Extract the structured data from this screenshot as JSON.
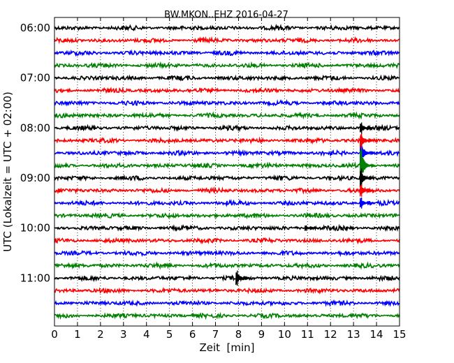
{
  "chart_data": {
    "type": "line",
    "title": "BW.MKON..EHZ 2016-04-27",
    "xlabel": "Zeit  [min]",
    "ylabel": "UTC (Lokalzeit = UTC + 02:00)",
    "xlim": [
      0,
      15
    ],
    "x_ticks": [
      "0",
      "1",
      "2",
      "3",
      "4",
      "5",
      "6",
      "7",
      "8",
      "9",
      "10",
      "11",
      "12",
      "13",
      "14",
      "15"
    ],
    "y_ticks": [
      "06:00",
      "07:00",
      "08:00",
      "09:00",
      "10:00",
      "11:00"
    ],
    "grid": "vertical dotted",
    "trace_interval_min": 15,
    "trace_colors": [
      "#000000",
      "#ff0000",
      "#0000ff",
      "#008000"
    ],
    "traces": [
      {
        "start": "06:00",
        "color": "#000000"
      },
      {
        "start": "06:15",
        "color": "#ff0000"
      },
      {
        "start": "06:30",
        "color": "#0000ff"
      },
      {
        "start": "06:45",
        "color": "#008000"
      },
      {
        "start": "07:00",
        "color": "#000000"
      },
      {
        "start": "07:15",
        "color": "#ff0000"
      },
      {
        "start": "07:30",
        "color": "#0000ff"
      },
      {
        "start": "07:45",
        "color": "#008000"
      },
      {
        "start": "08:00",
        "color": "#000000"
      },
      {
        "start": "08:15",
        "color": "#ff0000"
      },
      {
        "start": "08:30",
        "color": "#0000ff"
      },
      {
        "start": "08:45",
        "color": "#008000"
      },
      {
        "start": "09:00",
        "color": "#000000"
      },
      {
        "start": "09:15",
        "color": "#ff0000"
      },
      {
        "start": "09:30",
        "color": "#0000ff"
      },
      {
        "start": "09:45",
        "color": "#008000"
      },
      {
        "start": "10:00",
        "color": "#000000"
      },
      {
        "start": "10:15",
        "color": "#ff0000"
      },
      {
        "start": "10:30",
        "color": "#0000ff"
      },
      {
        "start": "10:45",
        "color": "#008000"
      },
      {
        "start": "11:00",
        "color": "#000000"
      },
      {
        "start": "11:15",
        "color": "#ff0000"
      },
      {
        "start": "11:30",
        "color": "#0000ff"
      },
      {
        "start": "11:45",
        "color": "#008000"
      }
    ],
    "events": [
      {
        "start": "08:30",
        "x": 13.35,
        "amplitude": 1.9,
        "color": "#0000ff"
      },
      {
        "start": "08:45",
        "x": 13.35,
        "amplitude": 2.6,
        "color": "#008000"
      },
      {
        "start": "09:00",
        "x": 13.35,
        "amplitude": 1.4,
        "color": "#000000"
      },
      {
        "start": "08:15",
        "x": 13.35,
        "amplitude": 1.2,
        "color": "#ff0000"
      },
      {
        "start": "08:00",
        "x": 13.35,
        "amplitude": 0.8,
        "color": "#000000"
      },
      {
        "start": "09:15",
        "x": 13.35,
        "amplitude": 0.9,
        "color": "#ff0000"
      },
      {
        "start": "09:30",
        "x": 13.35,
        "amplitude": 0.8,
        "color": "#0000ff"
      },
      {
        "start": "11:00",
        "x": 7.95,
        "amplitude": 1.1,
        "color": "#000000"
      },
      {
        "start": "10:00",
        "x": 10.95,
        "amplitude": 0.4,
        "color": "#000000"
      }
    ]
  }
}
